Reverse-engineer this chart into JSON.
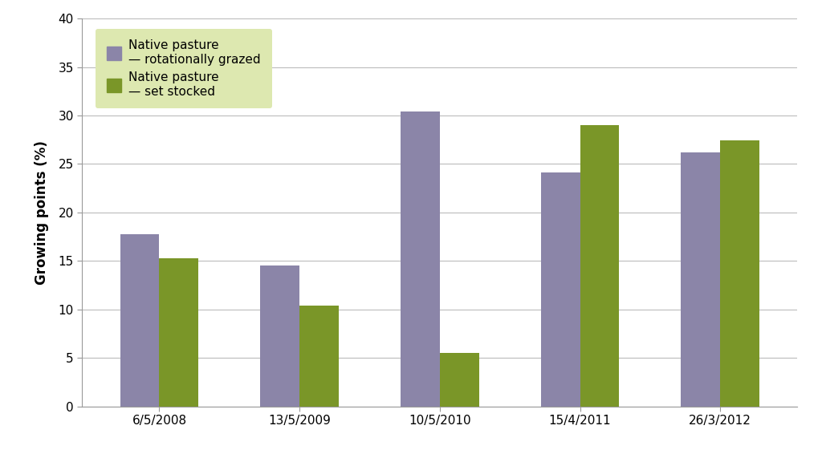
{
  "categories": [
    "6/5/2008",
    "13/5/2009",
    "10/5/2010",
    "15/4/2011",
    "26/3/2012"
  ],
  "series1_values": [
    17.8,
    14.5,
    30.4,
    24.1,
    26.2
  ],
  "series2_values": [
    15.3,
    10.4,
    5.5,
    29.0,
    27.4
  ],
  "series1_label_line1": "Native pasture",
  "series1_label_line2": "— rotationally grazed",
  "series2_label_line1": "Native pasture",
  "series2_label_line2": "— set stocked",
  "series1_color": "#8b85a8",
  "series2_color": "#7a9628",
  "ylabel": "Growing points (%)",
  "ylim": [
    0,
    40
  ],
  "yticks": [
    0,
    5,
    10,
    15,
    20,
    25,
    30,
    35,
    40
  ],
  "background_color": "#ffffff",
  "plot_bg_color": "#ffffff",
  "legend_bg_color": "#dde8b0",
  "bar_width": 0.28,
  "grid_color": "#bbbbbb",
  "axis_color": "#999999",
  "tick_label_fontsize": 11,
  "ylabel_fontsize": 12,
  "legend_fontsize": 11
}
